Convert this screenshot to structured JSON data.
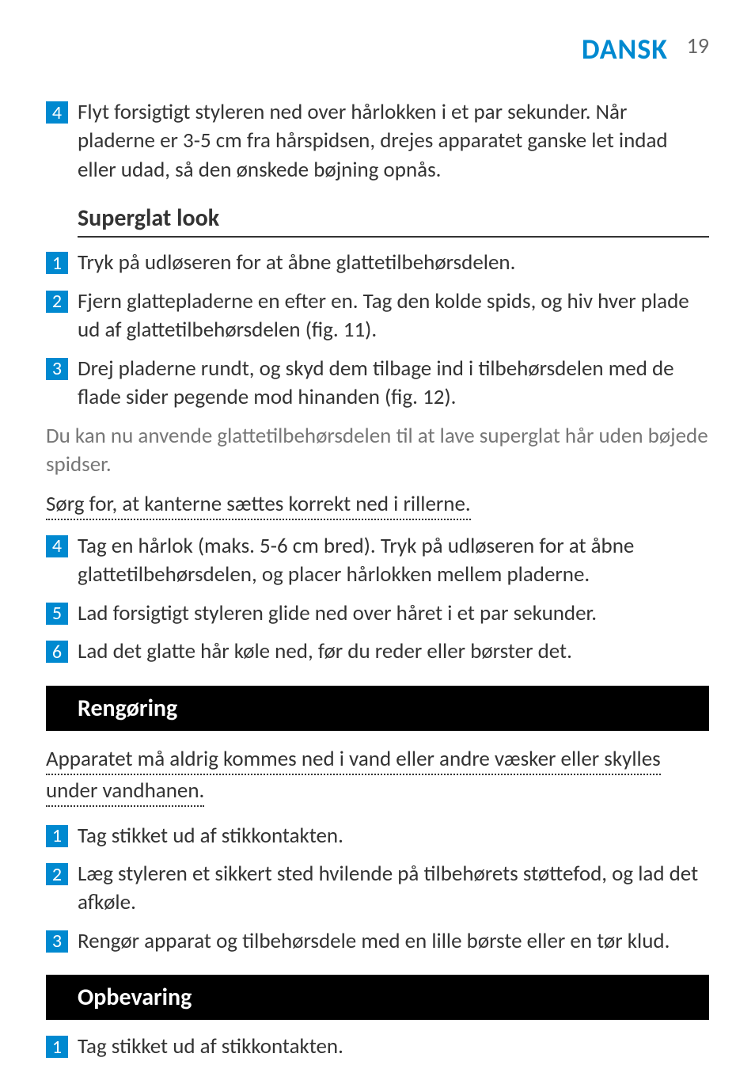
{
  "header": {
    "language": "DANSK",
    "pageNumber": "19"
  },
  "colors": {
    "accent": "#0089d0",
    "text": "#333333",
    "muted": "#777777",
    "headerBg": "#000000",
    "headerText": "#ffffff",
    "pageNum": "#666666",
    "background": "#ffffff"
  },
  "typography": {
    "bodyFontSize": 27,
    "titleFontSize": 30,
    "languageFontSize": 36,
    "pageNumFontSize": 28,
    "stepNumberFontSize": 24
  },
  "topStep": {
    "number": "4",
    "text": "Flyt forsigtigt styleren ned over hårlokken i et par sekunder. Når pladerne er 3-5 cm fra hårspidsen, drejes apparatet ganske let indad eller udad, så den ønskede bøjning opnås."
  },
  "subsection1": {
    "title": "Superglat look",
    "steps": [
      {
        "number": "1",
        "text": "Tryk på udløseren for at åbne glattetilbehørsdelen."
      },
      {
        "number": "2",
        "text": "Fjern glattepladerne en efter en. Tag den kolde spids, og hiv hver plade ud af glattetilbehørsdelen (fig. 11)."
      },
      {
        "number": "3",
        "text": "Drej pladerne rundt, og skyd dem tilbage ind i tilbehørsdelen med de flade sider pegende mod hinanden (fig. 12)."
      }
    ],
    "note": "Du kan nu anvende glattetilbehørsdelen til at lave superglat hår uden bøjede spidser.",
    "dottedNote": "Sørg for, at kanterne sættes korrekt ned i rillerne.",
    "steps2": [
      {
        "number": "4",
        "text": "Tag en hårlok (maks. 5-6 cm bred). Tryk på udløseren for at åbne glattetilbehørsdelen, og placer hårlokken mellem pladerne."
      },
      {
        "number": "5",
        "text": "Lad forsigtigt styleren glide ned over håret i et par sekunder."
      },
      {
        "number": "6",
        "text": "Lad det glatte hår køle ned, før du reder eller børster det."
      }
    ]
  },
  "section2": {
    "title": "Rengøring",
    "warning": "Apparatet må aldrig kommes ned i vand eller andre væsker eller skylles under vandhanen.",
    "steps": [
      {
        "number": "1",
        "text": "Tag stikket ud af stikkontakten."
      },
      {
        "number": "2",
        "text": "Læg styleren et sikkert sted hvilende på tilbehørets støttefod, og lad det afkøle."
      },
      {
        "number": "3",
        "text": "Rengør apparat og tilbehørsdele med en lille børste eller en tør klud."
      }
    ]
  },
  "section3": {
    "title": "Opbevaring",
    "steps": [
      {
        "number": "1",
        "text": "Tag stikket ud af stikkontakten."
      }
    ]
  }
}
